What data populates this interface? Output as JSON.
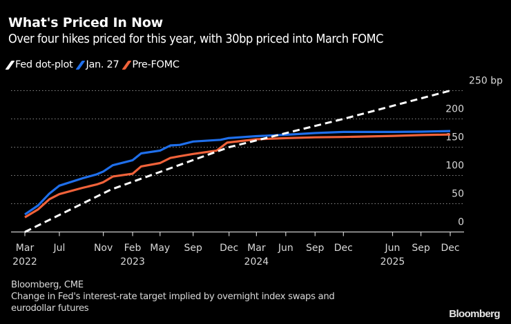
{
  "header": {
    "title": "What's Priced In Now",
    "subtitle": "Over four hikes priced for this year, with 30bp priced into March FOMC"
  },
  "legend": [
    {
      "label": "Fed dot-plot",
      "color": "#ffffff"
    },
    {
      "label": "Jan. 27",
      "color": "#1f6feb"
    },
    {
      "label": "Pre-FOMC",
      "color": "#f0623a"
    }
  ],
  "footer": {
    "source": "Bloomberg, CME",
    "note_line1": "Change in Fed's interest-rate target implied by overnight index swaps and",
    "note_line2": "eurodollar futures",
    "logo": "Bloomberg"
  },
  "chart_data": {
    "type": "line",
    "title": "What's Priced In Now",
    "subtitle": "Over four hikes priced for this year, with 30bp priced into March FOMC",
    "xlabel": "",
    "ylabel": "bp",
    "x_unit": "months since Mar 2022",
    "xlim": [
      0,
      45
    ],
    "ylim": [
      0,
      250
    ],
    "grid": true,
    "legend_position": "top-left",
    "y_axis_side": "right",
    "yticks": [
      {
        "value": 0,
        "label": "0"
      },
      {
        "value": 50,
        "label": "50"
      },
      {
        "value": 100,
        "label": "100"
      },
      {
        "value": 150,
        "label": "150"
      },
      {
        "value": 200,
        "label": "200"
      },
      {
        "value": 250,
        "label": "250 bp"
      }
    ],
    "xticks": [
      {
        "value": 0,
        "label": "Mar",
        "year": "2022"
      },
      {
        "value": 3.65,
        "label": "Jul",
        "year": ""
      },
      {
        "value": 8.3,
        "label": "Nov",
        "year": ""
      },
      {
        "value": 11.4,
        "label": "Feb",
        "year": "2023"
      },
      {
        "value": 14.3,
        "label": "May",
        "year": ""
      },
      {
        "value": 17.8,
        "label": "Sep",
        "year": ""
      },
      {
        "value": 21.6,
        "label": "Dec",
        "year": ""
      },
      {
        "value": 24.5,
        "label": "Mar",
        "year": "2024"
      },
      {
        "value": 27.6,
        "label": "Jun",
        "year": ""
      },
      {
        "value": 30.7,
        "label": "Sep",
        "year": ""
      },
      {
        "value": 33.7,
        "label": "Dec",
        "year": ""
      },
      {
        "value": 38.9,
        "label": "Jun",
        "year": "2025"
      },
      {
        "value": 41.9,
        "label": "Sep",
        "year": ""
      },
      {
        "value": 45,
        "label": "Dec",
        "year": ""
      }
    ],
    "series": [
      {
        "name": "Fed dot-plot",
        "color": "#ffffff",
        "dashed": true,
        "points": [
          [
            0,
            0
          ],
          [
            9.1,
            75
          ],
          [
            21.6,
            150
          ],
          [
            33.7,
            200
          ],
          [
            45,
            250
          ]
        ]
      },
      {
        "name": "Jan. 27",
        "color": "#1f6feb",
        "dashed": false,
        "points": [
          [
            0,
            31
          ],
          [
            1.4,
            47
          ],
          [
            2.6,
            68
          ],
          [
            3.65,
            82
          ],
          [
            6.1,
            95
          ],
          [
            7.6,
            102
          ],
          [
            8.3,
            107
          ],
          [
            9.3,
            118
          ],
          [
            11.4,
            127
          ],
          [
            12.3,
            139
          ],
          [
            14.3,
            144
          ],
          [
            15.4,
            153
          ],
          [
            16.4,
            154
          ],
          [
            17.8,
            160
          ],
          [
            20.7,
            163
          ],
          [
            21.5,
            166
          ],
          [
            24.5,
            169.5
          ],
          [
            27.6,
            172
          ],
          [
            30.7,
            175
          ],
          [
            33.7,
            177
          ],
          [
            39,
            177
          ],
          [
            42,
            177.5
          ],
          [
            45,
            178.5
          ]
        ]
      },
      {
        "name": "Pre-FOMC",
        "color": "#f0623a",
        "dashed": false,
        "points": [
          [
            0,
            26
          ],
          [
            1.4,
            40
          ],
          [
            2.6,
            58
          ],
          [
            3.65,
            67
          ],
          [
            6.1,
            78
          ],
          [
            7.6,
            84
          ],
          [
            8.3,
            88
          ],
          [
            9.3,
            98
          ],
          [
            11.4,
            103
          ],
          [
            12.3,
            116
          ],
          [
            14.3,
            122
          ],
          [
            15.4,
            131
          ],
          [
            16.4,
            134
          ],
          [
            17.8,
            138
          ],
          [
            20.3,
            144
          ],
          [
            21.4,
            158
          ],
          [
            24.5,
            164
          ],
          [
            27.6,
            166
          ],
          [
            30.7,
            167.5
          ],
          [
            33.7,
            168
          ],
          [
            39,
            170
          ],
          [
            42,
            171.5
          ],
          [
            45,
            172.5
          ]
        ]
      }
    ]
  }
}
